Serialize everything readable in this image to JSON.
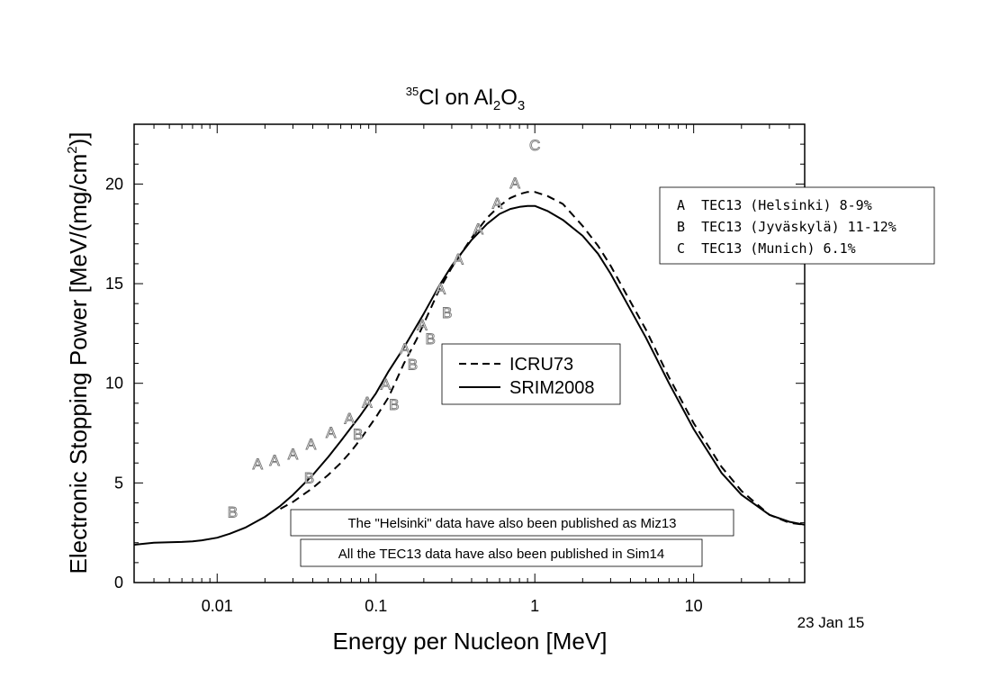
{
  "chart_data": {
    "type": "line",
    "title": {
      "mass": "35",
      "element": "Cl on Al",
      "sub1": "2",
      "mid": "O",
      "sub2": "3"
    },
    "xlabel": "Energy per Nucleon [MeV]",
    "ylabel": {
      "main": "Electronic Stopping Power [MeV/(mg/cm",
      "sup": "2",
      "end": ")]"
    },
    "xscale": "log",
    "xlim": [
      0.003,
      50
    ],
    "ylim": [
      0,
      23
    ],
    "xticks": [
      0.01,
      0.1,
      1,
      10
    ],
    "xtick_labels": [
      "0.01",
      "0.1",
      "1",
      "10"
    ],
    "yticks": [
      0,
      5,
      10,
      15,
      20
    ],
    "ytick_labels": [
      "0",
      "5",
      "10",
      "15",
      "20"
    ],
    "date_label": "23 Jan 15",
    "series": [
      {
        "name": "ICRU73",
        "style": "dashed",
        "color": "#000000",
        "x": [
          0.025,
          0.03,
          0.04,
          0.05,
          0.06,
          0.07,
          0.08,
          0.1,
          0.12,
          0.15,
          0.18,
          0.2,
          0.25,
          0.3,
          0.4,
          0.5,
          0.6,
          0.7,
          0.8,
          0.9,
          1.0,
          1.2,
          1.5,
          2.0,
          2.5,
          3.0,
          4.0,
          5.0,
          7.0,
          10.0,
          15.0,
          20.0,
          30.0,
          40.0,
          50.0
        ],
        "y": [
          3.7,
          4.05,
          4.75,
          5.4,
          6.0,
          6.6,
          7.2,
          8.3,
          9.3,
          11.0,
          12.2,
          13.0,
          14.7,
          15.8,
          17.3,
          18.3,
          18.9,
          19.3,
          19.5,
          19.6,
          19.6,
          19.4,
          19.0,
          17.9,
          16.9,
          15.9,
          14.1,
          12.7,
          10.3,
          8.0,
          5.8,
          4.6,
          3.4,
          3.0,
          2.9
        ]
      },
      {
        "name": "SRIM2008",
        "style": "solid",
        "color": "#000000",
        "x": [
          0.003,
          0.004,
          0.005,
          0.006,
          0.007,
          0.008,
          0.01,
          0.012,
          0.015,
          0.02,
          0.025,
          0.03,
          0.04,
          0.05,
          0.06,
          0.07,
          0.08,
          0.1,
          0.12,
          0.15,
          0.2,
          0.25,
          0.3,
          0.4,
          0.5,
          0.6,
          0.7,
          0.8,
          0.9,
          1.0,
          1.2,
          1.5,
          2.0,
          2.5,
          3.0,
          4.0,
          5.0,
          7.0,
          10.0,
          15.0,
          20.0,
          30.0,
          40.0,
          50.0
        ],
        "y": [
          1.9,
          2.0,
          2.02,
          2.04,
          2.07,
          2.12,
          2.25,
          2.45,
          2.75,
          3.3,
          3.85,
          4.4,
          5.4,
          6.3,
          7.1,
          7.8,
          8.4,
          9.5,
          10.6,
          11.8,
          13.5,
          14.9,
          15.9,
          17.2,
          18.0,
          18.5,
          18.75,
          18.85,
          18.9,
          18.9,
          18.65,
          18.2,
          17.4,
          16.5,
          15.5,
          13.7,
          12.3,
          10.0,
          7.7,
          5.5,
          4.4,
          3.4,
          3.05,
          2.9
        ]
      }
    ],
    "points": [
      {
        "label": "A",
        "x": [
          0.018,
          0.023,
          0.03,
          0.039,
          0.052,
          0.068,
          0.088,
          0.115,
          0.152,
          0.195,
          0.255,
          0.33,
          0.44,
          0.58,
          0.75
        ],
        "y": [
          6.0,
          6.2,
          6.5,
          7.0,
          7.6,
          8.3,
          9.1,
          10.0,
          11.8,
          13.0,
          14.8,
          16.3,
          17.8,
          19.1,
          20.1
        ]
      },
      {
        "label": "B",
        "x": [
          0.0125,
          0.038,
          0.077,
          0.13,
          0.17,
          0.22,
          0.28
        ],
        "y": [
          3.6,
          5.3,
          7.5,
          9.0,
          11.0,
          12.3,
          13.6
        ]
      },
      {
        "label": "C",
        "x": [
          1.0
        ],
        "y": [
          22.0
        ]
      }
    ],
    "legend_lines": {
      "placement": "center",
      "entries": [
        "ICRU73",
        "SRIM2008"
      ]
    },
    "legend_letters": {
      "placement": "top-right",
      "entries": [
        "A  TEC13 (Helsinki) 8-9%",
        "B  TEC13 (Jyväskylä) 11-12%",
        "C  TEC13 (Munich) 6.1%"
      ]
    },
    "notes": [
      "The \"Helsinki\" data have also been published as Miz13",
      "All the TEC13 data have also been published in Sim14"
    ]
  }
}
